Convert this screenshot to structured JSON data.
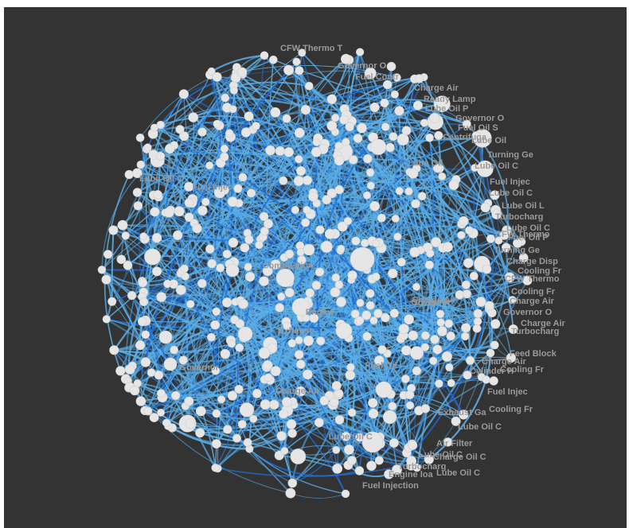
{
  "colors": {
    "background": "#333333",
    "edge_light": "#5aaee8",
    "edge_dark": "#1f6fd6",
    "node_fill": "#e6e6e6",
    "label": "#9a9a9a"
  },
  "graph": {
    "type": "force-directed network",
    "labels": [
      "CFW Thermo T",
      "Governor O",
      "Fuel Contr",
      "Charge Air",
      "Ready Lamp",
      "Lube Oil P",
      "Governor O",
      "Fuel Oil S",
      "Centrifuga",
      "Lube Oil",
      "Turning Ge",
      "Lube Oil C",
      "Fuel Injec",
      "Lube Oil C",
      "Lube Oil L",
      "Turbocharg",
      "Lube Oil C",
      "CFW Thermo",
      "Fuel Oil P",
      "Turning Ge",
      "Charge Disp",
      "Cooling Fr",
      "CFW Thermo",
      "Cooling Fr",
      "Charge Air",
      "Governor O",
      "Charge Air",
      "Turbocharg",
      "Feed Block",
      "Charge Air",
      "Cooling Fr",
      "Cylinder H",
      "Fuel Injec",
      "Cooling Fr",
      "Exhaust Ga",
      "Lube Oil C",
      "Air Filter",
      "Lube Oil C",
      "Charge Oil C",
      "Turbocharg",
      "Lube Oil C",
      "Engine loa",
      "Fuel Injection",
      "Lube Oil C",
      "Governor",
      "Charge Air",
      "Combustion",
      "Lube Oil",
      "Governor",
      "Lube Oil C",
      "Exhaust",
      "Fuel Oil",
      "Fuel Injec",
      "Charge Air",
      "Engine"
    ]
  }
}
